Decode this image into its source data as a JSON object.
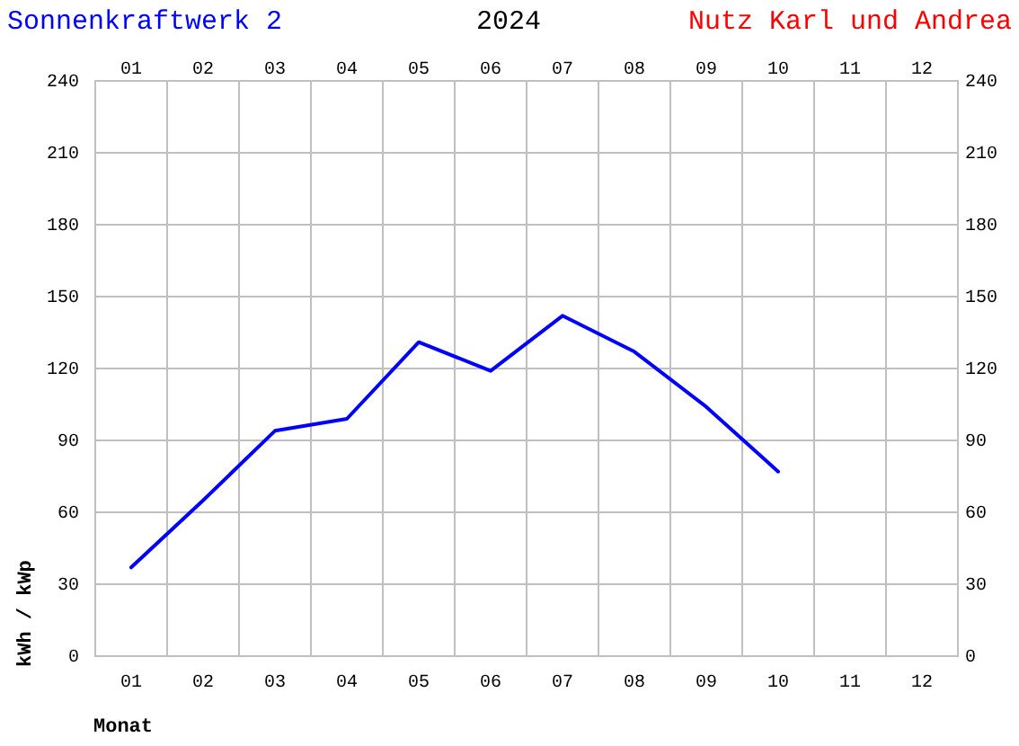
{
  "chart_data": {
    "type": "line",
    "title": "2024",
    "subtitle": "Sonnenkraftwerk 2",
    "annotations": [
      "Nutz Karl und Andrea"
    ],
    "xlabel": "Monat",
    "ylabel": "kWh / kWp",
    "categories": [
      "01",
      "02",
      "03",
      "04",
      "05",
      "06",
      "07",
      "08",
      "09",
      "10",
      "11",
      "12"
    ],
    "series": [
      {
        "color": "#0000ff",
        "values": [
          37,
          65,
          94,
          99,
          131,
          119,
          142,
          127,
          104,
          77,
          null,
          null
        ]
      }
    ],
    "ylim": [
      0,
      240
    ],
    "yticks": [
      0,
      30,
      60,
      90,
      120,
      150,
      180,
      210,
      240
    ],
    "y2lim": [
      0,
      240
    ],
    "y2ticks": [
      0,
      30,
      60,
      90,
      120,
      150,
      180,
      210,
      240
    ],
    "grid": true
  }
}
